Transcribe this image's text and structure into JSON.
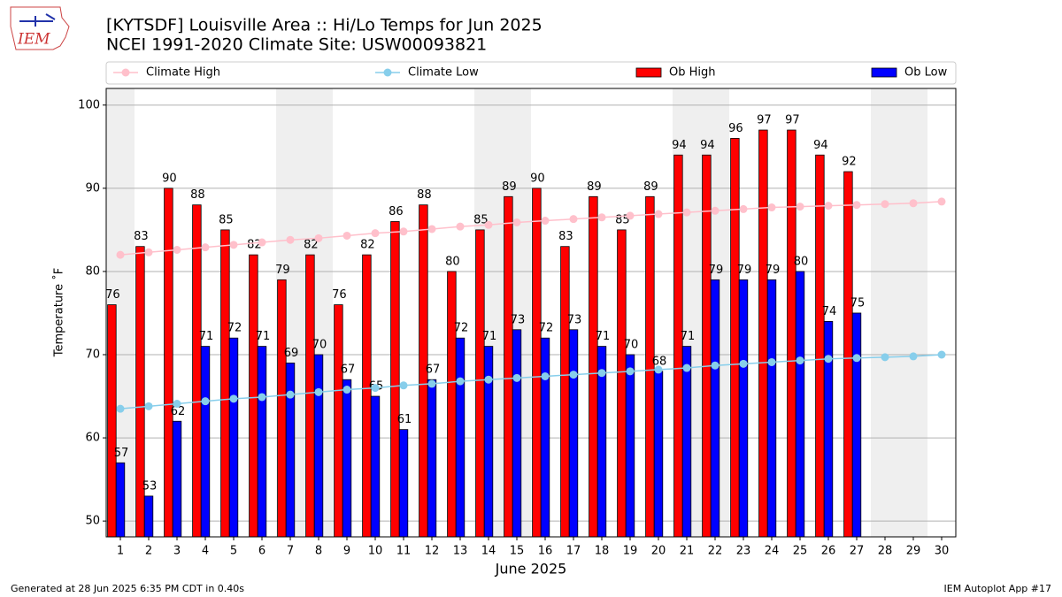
{
  "logo_text": "IEM",
  "footer_left": "Generated at 28 Jun 2025 6:35 PM CDT in 0.40s",
  "footer_right": "IEM Autoplot App #17",
  "chart_data": {
    "type": "bar",
    "title": "[KYTSDF] Louisville Area :: Hi/Lo Temps for Jun 2025",
    "subtitle": "NCEI 1991-2020 Climate Site: USW00093821",
    "x_label": "June 2025",
    "y_label": "Temperature ˚F",
    "x": [
      1,
      2,
      3,
      4,
      5,
      6,
      7,
      8,
      9,
      10,
      11,
      12,
      13,
      14,
      15,
      16,
      17,
      18,
      19,
      20,
      21,
      22,
      23,
      24,
      25,
      26,
      27,
      28,
      29,
      30
    ],
    "xlim": [
      0.5,
      30.5
    ],
    "xticks": [
      1,
      2,
      3,
      4,
      5,
      6,
      7,
      8,
      9,
      10,
      11,
      12,
      13,
      14,
      15,
      16,
      17,
      18,
      19,
      20,
      21,
      22,
      23,
      24,
      25,
      26,
      27,
      28,
      29,
      30
    ],
    "ylim": [
      48.1,
      102
    ],
    "yticks": [
      50,
      60,
      70,
      80,
      90,
      100
    ],
    "grid": true,
    "shaded_days": [
      1,
      7,
      8,
      14,
      15,
      21,
      22,
      28,
      29
    ],
    "series": [
      {
        "name": "Climate High",
        "type": "line",
        "color": "#ffc0cb",
        "values": [
          82.0,
          82.3,
          82.6,
          82.9,
          83.2,
          83.5,
          83.8,
          84.0,
          84.3,
          84.6,
          84.8,
          85.1,
          85.4,
          85.6,
          85.9,
          86.1,
          86.3,
          86.5,
          86.7,
          86.9,
          87.1,
          87.3,
          87.5,
          87.7,
          87.8,
          87.9,
          88.0,
          88.1,
          88.2,
          88.4
        ]
      },
      {
        "name": "Climate Low",
        "type": "line",
        "color": "#87ceeb",
        "values": [
          63.5,
          63.8,
          64.1,
          64.4,
          64.7,
          64.9,
          65.2,
          65.5,
          65.8,
          66.0,
          66.3,
          66.5,
          66.8,
          67.0,
          67.2,
          67.4,
          67.6,
          67.8,
          68.0,
          68.2,
          68.4,
          68.7,
          68.9,
          69.1,
          69.3,
          69.5,
          69.6,
          69.7,
          69.8,
          70.0
        ]
      },
      {
        "name": "Ob High",
        "type": "bar",
        "color": "#ff0000",
        "values": [
          76,
          83,
          90,
          88,
          85,
          82,
          79,
          82,
          76,
          82,
          86,
          88,
          80,
          85,
          89,
          90,
          83,
          89,
          85,
          89,
          94,
          94,
          96,
          97,
          97,
          94,
          92,
          null,
          null,
          null
        ]
      },
      {
        "name": "Ob Low",
        "type": "bar",
        "color": "#0000ff",
        "values": [
          57,
          53,
          62,
          71,
          72,
          71,
          69,
          70,
          67,
          65,
          61,
          67,
          72,
          71,
          73,
          72,
          73,
          71,
          70,
          68,
          71,
          79,
          79,
          79,
          80,
          74,
          75,
          null,
          null,
          null
        ]
      }
    ]
  }
}
